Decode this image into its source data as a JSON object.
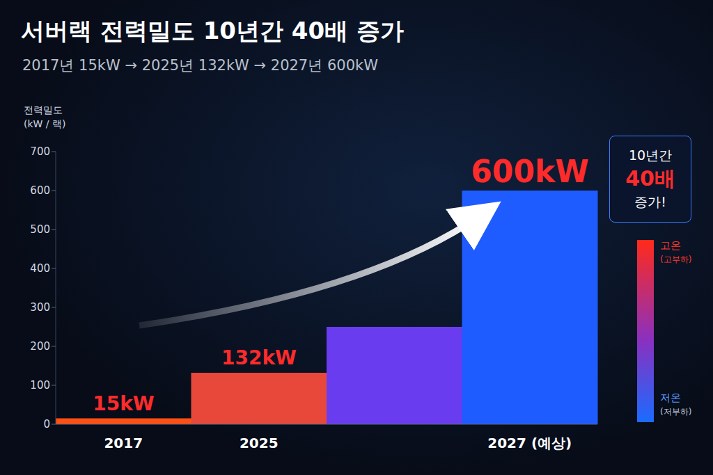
{
  "chart_data": {
    "type": "bar",
    "title": "서버랙 전력밀도 10년간 40배 증가",
    "subtitle": "2017년 15kW → 2025년 132kW → 2027년 600kW",
    "y_label": [
      "전력밀도",
      "(kW / 랙)"
    ],
    "categories": [
      "2017",
      "2025",
      null,
      "2027 (예상)"
    ],
    "values": [
      15,
      132,
      250,
      600
    ],
    "value_labels": [
      "15kW",
      "132kW",
      null,
      "600kW"
    ],
    "data_labels": true,
    "colors": [
      "#ff5014",
      "#e8483a",
      "#6a3cf0",
      "#1e5cff"
    ],
    "ylim": [
      0,
      700
    ],
    "yticks": [
      0,
      100,
      200,
      300,
      400,
      500,
      600,
      700
    ],
    "grid": false,
    "annotations": {
      "callout": [
        "10년간",
        "40배",
        "증가!"
      ],
      "scale": {
        "high": "고온",
        "high_note": "(고부하)",
        "low": "저온",
        "low_note": "(저부하)"
      }
    }
  }
}
